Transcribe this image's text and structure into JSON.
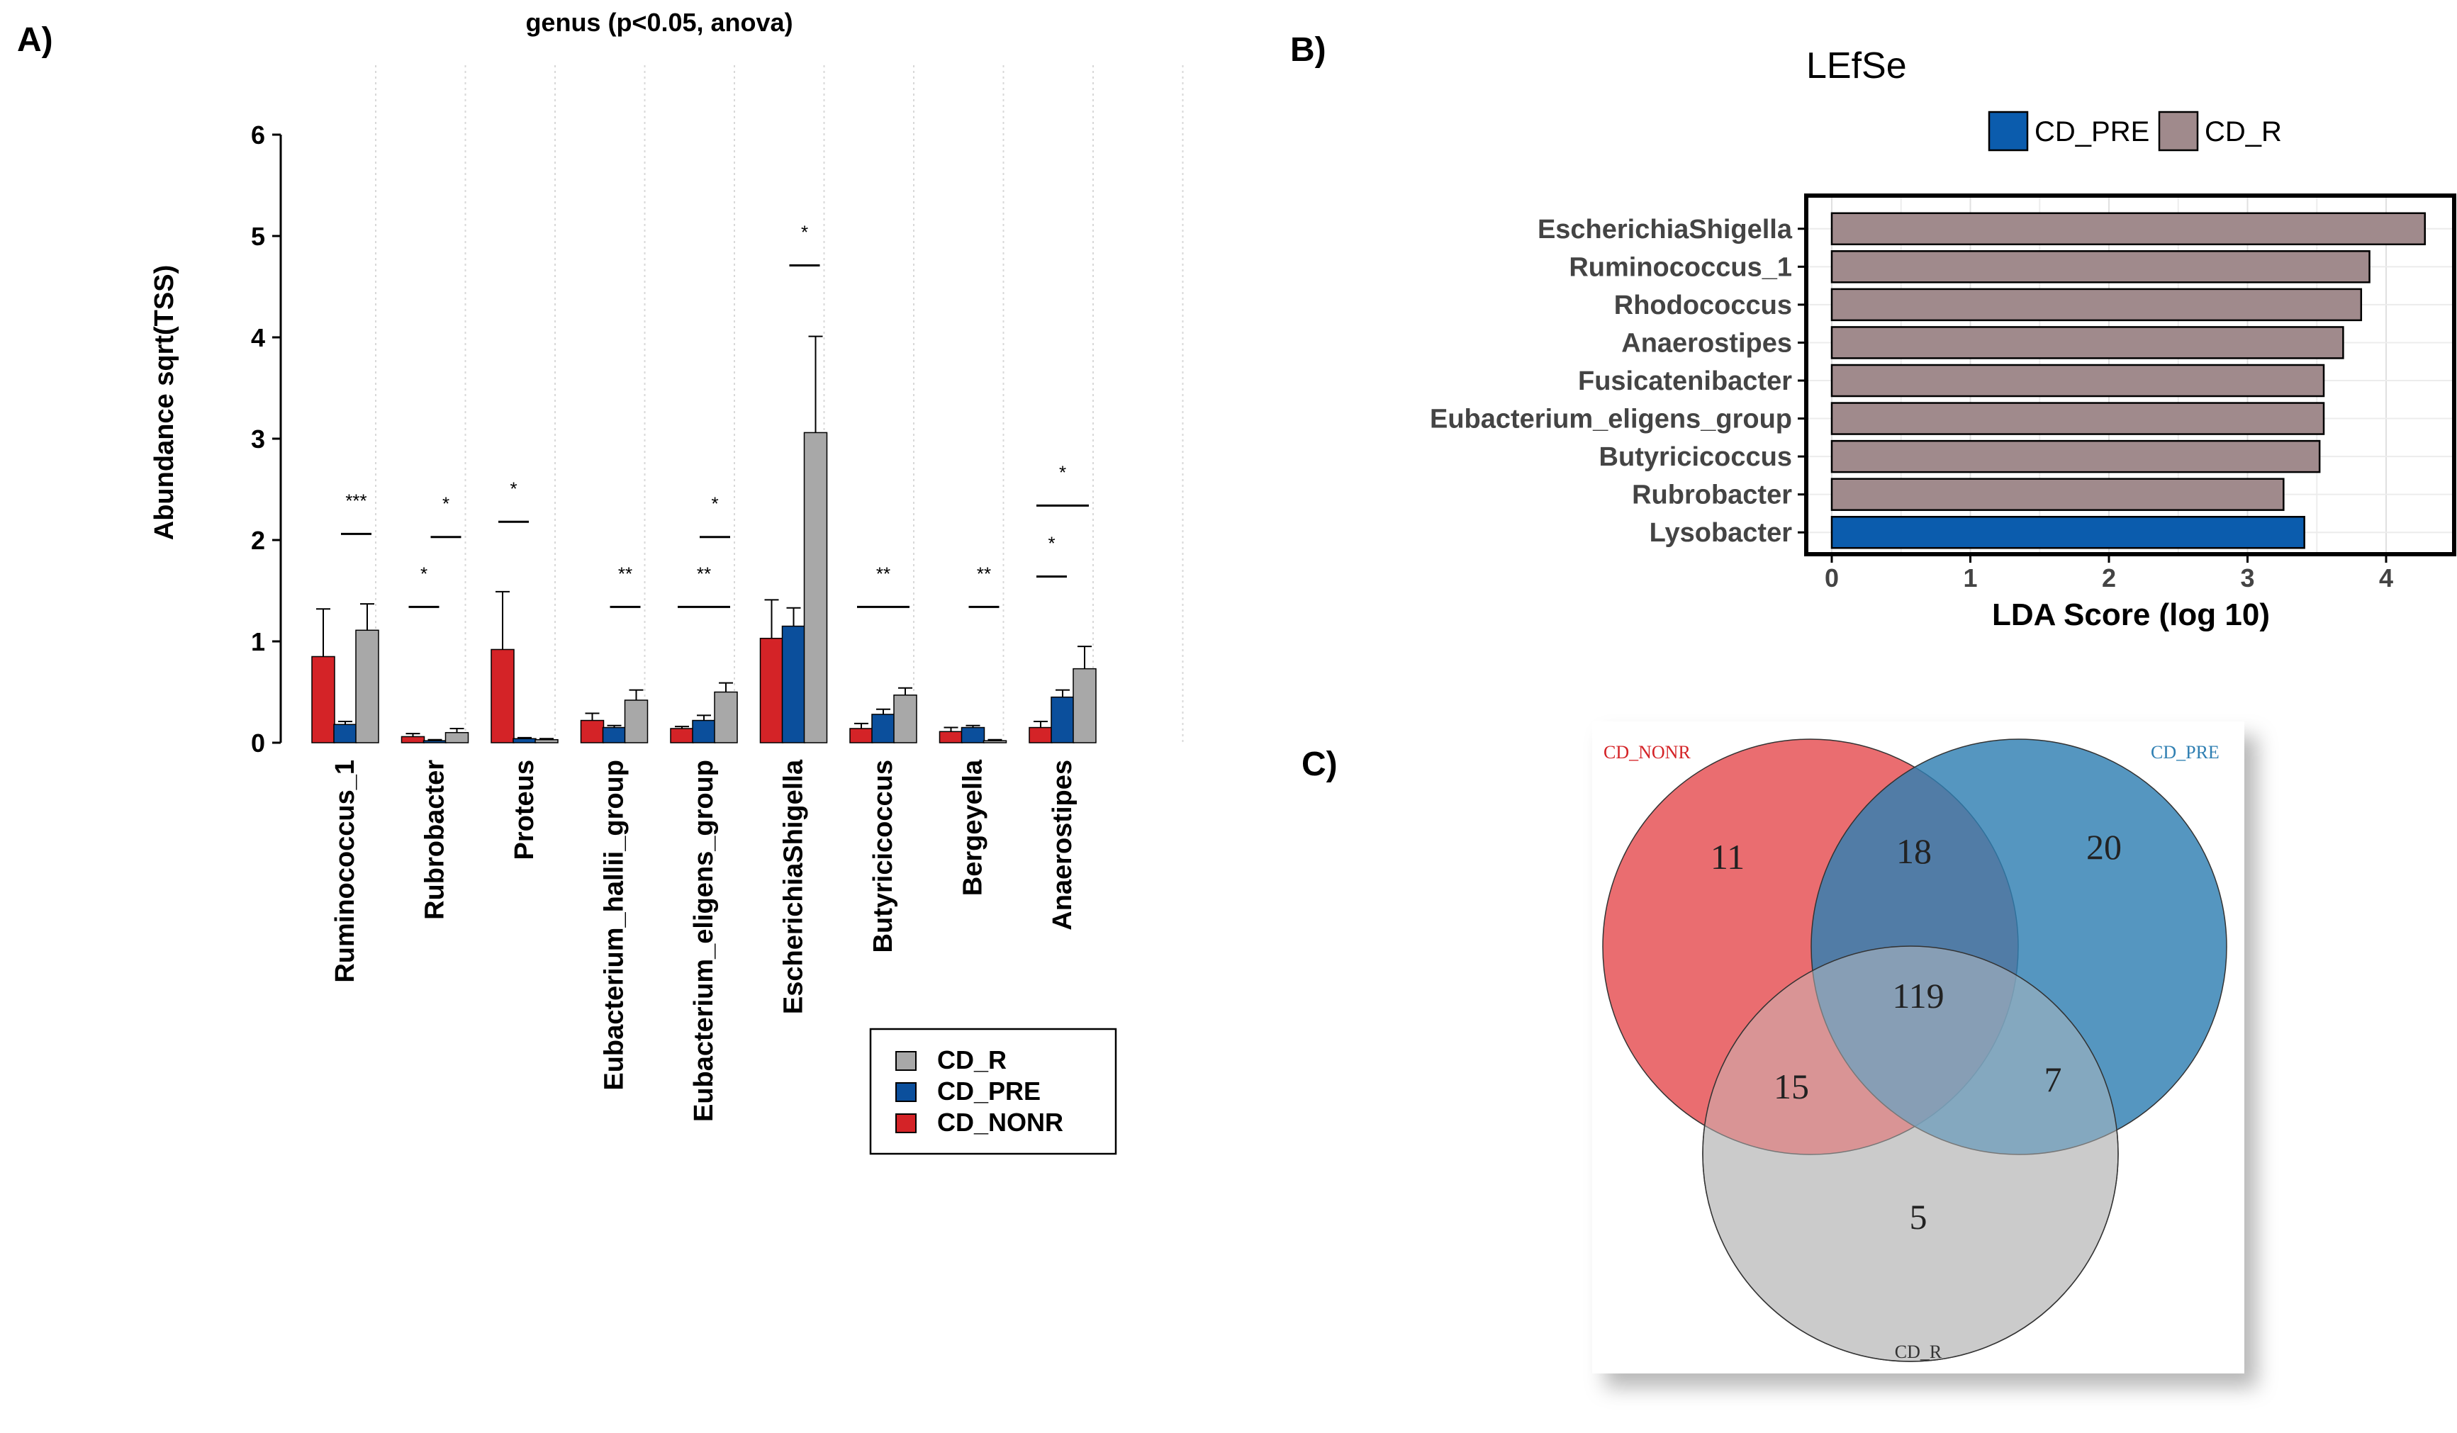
{
  "panels": {
    "a": "A)",
    "b": "B)",
    "c": "C)"
  },
  "chart_data": [
    {
      "type": "bar",
      "title": "genus (p<0.05, anova)",
      "ylabel": "Abundance sqrt(TSS)",
      "xlabel": "",
      "ylim": [
        0,
        6
      ],
      "yticks": [
        "0",
        "1",
        "2",
        "3",
        "4",
        "5",
        "6"
      ],
      "categories": [
        "Ruminococcus_1",
        "Rubrobacter",
        "Proteus",
        "Eubacterium_hallii_group",
        "Eubacterium_eligens_group",
        "EscherichiaShigella",
        "Butyricicoccus",
        "Bergeyella",
        "Anaerostipes"
      ],
      "series": [
        {
          "name": "CD_NONR",
          "color": "#d42327",
          "values": [
            0.85,
            0.06,
            0.92,
            0.22,
            0.14,
            1.03,
            0.14,
            0.11,
            0.15
          ],
          "errors": [
            0.47,
            0.03,
            0.57,
            0.07,
            0.02,
            0.38,
            0.05,
            0.04,
            0.06
          ]
        },
        {
          "name": "CD_PRE",
          "color": "#0b4f9c",
          "values": [
            0.18,
            0.02,
            0.04,
            0.15,
            0.22,
            1.15,
            0.28,
            0.15,
            0.45
          ],
          "errors": [
            0.03,
            0.01,
            0.01,
            0.02,
            0.05,
            0.18,
            0.05,
            0.02,
            0.07
          ]
        },
        {
          "name": "CD_R",
          "color": "#a8a8a8",
          "values": [
            1.11,
            0.1,
            0.03,
            0.42,
            0.5,
            3.06,
            0.47,
            0.02,
            0.73
          ],
          "errors": [
            0.26,
            0.04,
            0.01,
            0.1,
            0.09,
            0.95,
            0.07,
            0.01,
            0.22
          ]
        }
      ],
      "legend_entries": [
        "CD_R",
        "CD_PRE",
        "CD_NONR"
      ],
      "significance": [
        {
          "category": 0,
          "from": 1,
          "to": 2,
          "y": 2.06,
          "label": "***"
        },
        {
          "category": 1,
          "from": 0,
          "to": 1,
          "y": 1.34,
          "label": "*"
        },
        {
          "category": 1,
          "from": 1,
          "to": 2,
          "y": 2.03,
          "label": "*"
        },
        {
          "category": 2,
          "from": 0,
          "to": 1,
          "y": 2.18,
          "label": "*"
        },
        {
          "category": 3,
          "from": 1,
          "to": 2,
          "y": 1.34,
          "label": "**"
        },
        {
          "category": 4,
          "from": 0,
          "to": 2,
          "y": 1.34,
          "label": "**"
        },
        {
          "category": 4,
          "from": 1,
          "to": 2,
          "y": 2.03,
          "label": "*"
        },
        {
          "category": 5,
          "from": 1,
          "to": 2,
          "y": 4.71,
          "label": "*"
        },
        {
          "category": 6,
          "from": 0,
          "to": 2,
          "y": 1.34,
          "label": "**"
        },
        {
          "category": 7,
          "from": 1,
          "to": 2,
          "y": 1.34,
          "label": "**"
        },
        {
          "category": 8,
          "from": 0,
          "to": 1,
          "y": 1.64,
          "label": "*"
        },
        {
          "category": 8,
          "from": 0,
          "to": 2,
          "y": 2.34,
          "label": "*"
        }
      ]
    },
    {
      "type": "bar",
      "orientation": "horizontal",
      "title": "LEfSe",
      "xlabel": "LDA Score (log 10)",
      "ylabel": "",
      "xlim": [
        0,
        4.4
      ],
      "xticks": [
        "0",
        "1",
        "2",
        "3",
        "4"
      ],
      "categories": [
        "EscherichiaShigella",
        "Ruminococcus_1",
        "Rhodococcus",
        "Anaerostipes",
        "Fusicatenibacter",
        "Eubacterium_eligens_group",
        "Butyricicoccus",
        "Rubrobacter",
        "Lysobacter"
      ],
      "values": [
        4.28,
        3.88,
        3.82,
        3.69,
        3.55,
        3.55,
        3.52,
        3.26,
        3.41
      ],
      "groups": [
        "CD_R",
        "CD_R",
        "CD_R",
        "CD_R",
        "CD_R",
        "CD_R",
        "CD_R",
        "CD_R",
        "CD_PRE"
      ],
      "legend_entries": [
        {
          "name": "CD_PRE",
          "color": "#0b5cad"
        },
        {
          "name": "CD_R",
          "color": "#a08a8c"
        }
      ]
    },
    {
      "type": "venn",
      "sets": [
        {
          "name": "CD_NONR",
          "color": "#e85d60"
        },
        {
          "name": "CD_PRE",
          "color": "#2f7fb2"
        },
        {
          "name": "CD_R",
          "color": "#c9c9c9"
        }
      ],
      "regions": {
        "only_nonr": "11",
        "only_pre": "20",
        "only_r": "5",
        "nonr_pre": "18",
        "nonr_r": "15",
        "pre_r": "7",
        "all": "119"
      }
    }
  ]
}
